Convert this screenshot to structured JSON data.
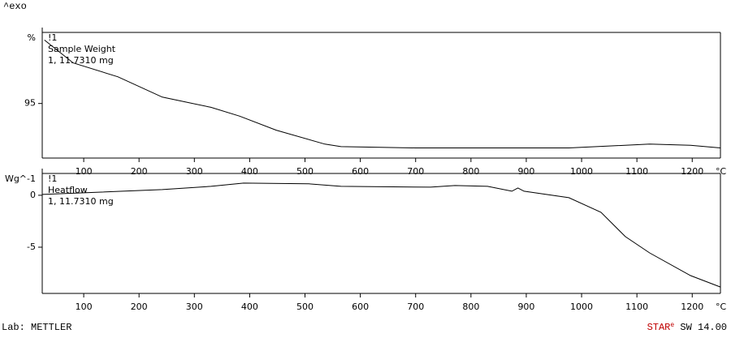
{
  "header": {
    "exo": "^exo"
  },
  "chart_data": [
    {
      "type": "line",
      "y_unit": "%",
      "x_unit": "°C",
      "annotations": [
        "!1",
        "Sample Weight",
        "1, 11.7310 mg"
      ],
      "xlim": [
        25,
        1251
      ],
      "xticks": [
        100,
        200,
        300,
        400,
        500,
        600,
        700,
        800,
        900,
        1000,
        1100,
        1200
      ],
      "ylim": [
        90.7,
        100.6
      ],
      "yticks": [
        95
      ],
      "x": [
        29,
        81,
        162,
        242,
        330,
        382,
        448,
        536,
        565,
        700,
        977,
        1123,
        1197,
        1251
      ],
      "series": [
        {
          "color": "#000000",
          "values": [
            100,
            98.2,
            97.1,
            95.5,
            94.7,
            94.0,
            92.9,
            91.8,
            91.6,
            91.5,
            91.5,
            91.8,
            91.7,
            91.5
          ]
        }
      ]
    },
    {
      "type": "line",
      "y_unit": "Wg^-1",
      "x_unit": "°C",
      "annotations": [
        "!1",
        "Heatflow",
        "1, 11.7310 mg"
      ],
      "xlim": [
        25,
        1251
      ],
      "xticks": [
        100,
        200,
        300,
        400,
        500,
        600,
        700,
        800,
        900,
        1000,
        1100,
        1200
      ],
      "ylim": [
        -9.45,
        2.1
      ],
      "yticks": [
        0,
        -5
      ],
      "x": [
        25,
        95,
        242,
        330,
        389,
        507,
        565,
        727,
        771,
        830,
        874,
        885,
        896,
        977,
        1035,
        1079,
        1123,
        1197,
        1251
      ],
      "series": [
        {
          "color": "#000000",
          "values": [
            0.08,
            0.23,
            0.55,
            0.86,
            1.17,
            1.1,
            0.86,
            0.78,
            0.94,
            0.86,
            0.39,
            0.7,
            0.39,
            -0.23,
            -1.64,
            -3.98,
            -5.55,
            -7.73,
            -8.83
          ]
        }
      ]
    }
  ],
  "footer": {
    "lab": "Lab: METTLER",
    "brand": "STAR",
    "brand_sup": "e",
    "version": "SW 14.00"
  }
}
